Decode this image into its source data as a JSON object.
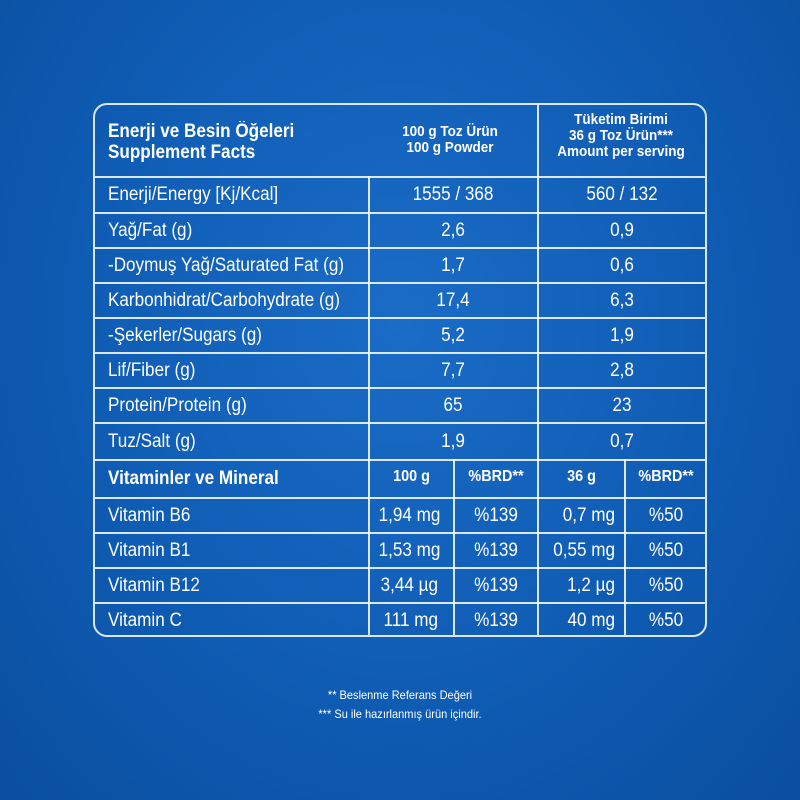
{
  "header": {
    "title_tr": "Enerji ve Besin Öğeleri",
    "title_en": "Supplement Facts",
    "col1_line1": "100 g Toz Ürün",
    "col1_line2": "100 g Powder",
    "col2_line1": "Tüketim Birimi",
    "col2_line2": "36 g Toz Ürün***",
    "col2_line3": "Amount per serving"
  },
  "nutrients": [
    {
      "label": "Enerji/Energy [Kj/Kcal]",
      "per100": "1555 / 368",
      "serving": "560 / 132"
    },
    {
      "label": "Yağ/Fat (g)",
      "per100": "2,6",
      "serving": "0,9"
    },
    {
      "label": "-Doymuş Yağ/Saturated Fat (g)",
      "per100": "1,7",
      "serving": "0,6"
    },
    {
      "label": "Karbonhidrat/Carbohydrate (g)",
      "per100": "17,4",
      "serving": "6,3"
    },
    {
      "label": "-Şekerler/Sugars (g)",
      "per100": "5,2",
      "serving": "1,9"
    },
    {
      "label": "Lif/Fiber (g)",
      "per100": "7,7",
      "serving": "2,8"
    },
    {
      "label": "Protein/Protein (g)",
      "per100": "65",
      "serving": "23"
    },
    {
      "label": "Tuz/Salt (g)",
      "per100": "1,9",
      "serving": "0,7"
    }
  ],
  "vitamins_header": {
    "label": "Vitaminler ve Mineral",
    "col_100g": "100 g",
    "col_brd1": "%BRD**",
    "col_36g": "36 g",
    "col_brd2": "%BRD**"
  },
  "vitamins": [
    {
      "label": "Vitamin B6",
      "per100": "1,94 mg",
      "brd100": "%139",
      "serving": "0,7 mg",
      "brdserving": "%50"
    },
    {
      "label": "Vitamin B1",
      "per100": "1,53 mg",
      "brd100": "%139",
      "serving": "0,55 mg",
      "brdserving": "%50"
    },
    {
      "label": "Vitamin B12",
      "per100": "3,44 µg",
      "brd100": "%139",
      "serving": "1,2 µg",
      "brdserving": "%50"
    },
    {
      "label": "Vitamin C",
      "per100": "111 mg",
      "brd100": "%139",
      "serving": "40 mg",
      "brdserving": "%50"
    }
  ],
  "footnotes": {
    "note1": "** Beslenme Referans Değeri",
    "note2": "*** Su ile hazırlanmış ürün içindir."
  }
}
